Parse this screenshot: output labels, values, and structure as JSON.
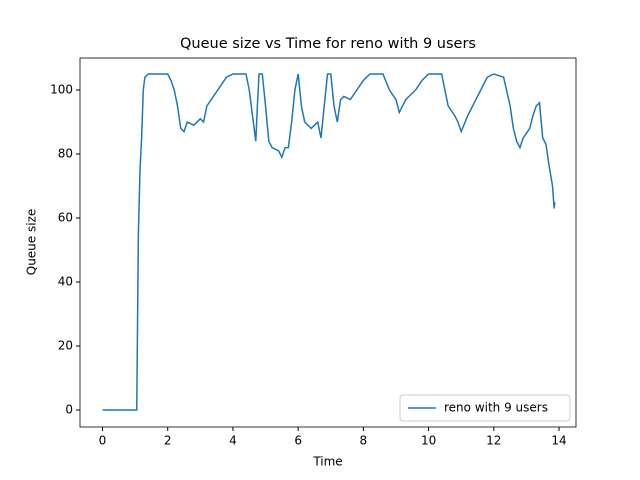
{
  "chart_data": {
    "type": "line",
    "title": "Queue size vs Time for reno with 9 users",
    "x_label": "Time",
    "y_label": "Queue size",
    "x": [
      0,
      1.05,
      1.1,
      1.15,
      1.2,
      1.25,
      1.3,
      1.4,
      2.0,
      2.1,
      2.2,
      2.3,
      2.4,
      2.5,
      2.6,
      2.8,
      3.0,
      3.1,
      3.2,
      3.4,
      3.6,
      3.8,
      4.0,
      4.4,
      4.5,
      4.6,
      4.7,
      4.75,
      4.8,
      4.9,
      5.0,
      5.1,
      5.2,
      5.4,
      5.5,
      5.6,
      5.7,
      5.8,
      5.9,
      6.0,
      6.1,
      6.2,
      6.4,
      6.6,
      6.7,
      6.8,
      6.9,
      7.0,
      7.1,
      7.2,
      7.3,
      7.4,
      7.6,
      7.8,
      8.0,
      8.2,
      8.6,
      8.8,
      9.0,
      9.1,
      9.3,
      9.4,
      9.6,
      9.8,
      10.0,
      10.4,
      10.5,
      10.6,
      10.8,
      10.9,
      11.0,
      11.2,
      11.4,
      11.6,
      11.8,
      12.0,
      12.3,
      12.5,
      12.6,
      12.7,
      12.8,
      12.9,
      13.1,
      13.2,
      13.3,
      13.4,
      13.5,
      13.6,
      13.7,
      13.8,
      13.85,
      13.87
    ],
    "series": [
      {
        "name": "reno with 9 users",
        "color": "#1f77b4",
        "values": [
          0,
          0,
          55,
          75,
          85,
          100,
          104,
          105,
          105,
          103,
          100,
          95,
          88,
          87,
          90,
          89,
          91,
          90,
          95,
          98,
          101,
          104,
          105,
          105,
          100,
          92,
          84,
          95,
          105,
          105,
          95,
          84,
          82,
          81,
          79,
          82,
          82,
          90,
          100,
          105,
          95,
          90,
          88,
          90,
          85,
          95,
          105,
          105,
          95,
          90,
          97,
          98,
          97,
          100,
          103,
          105,
          105,
          100,
          97,
          93,
          97,
          98,
          100,
          103,
          105,
          105,
          100,
          95,
          92,
          90,
          87,
          92,
          96,
          100,
          104,
          105,
          104,
          95,
          88,
          84,
          82,
          85,
          88,
          92,
          95,
          96,
          85,
          83,
          76,
          70,
          63,
          65
        ]
      }
    ],
    "xlim": [
      -0.69,
      14.52
    ],
    "ylim": [
      -5.3,
      110
    ],
    "xticks": [
      0,
      2,
      4,
      6,
      8,
      10,
      12,
      14
    ],
    "yticks": [
      0,
      20,
      40,
      60,
      80,
      100
    ],
    "legend": "lower right"
  }
}
